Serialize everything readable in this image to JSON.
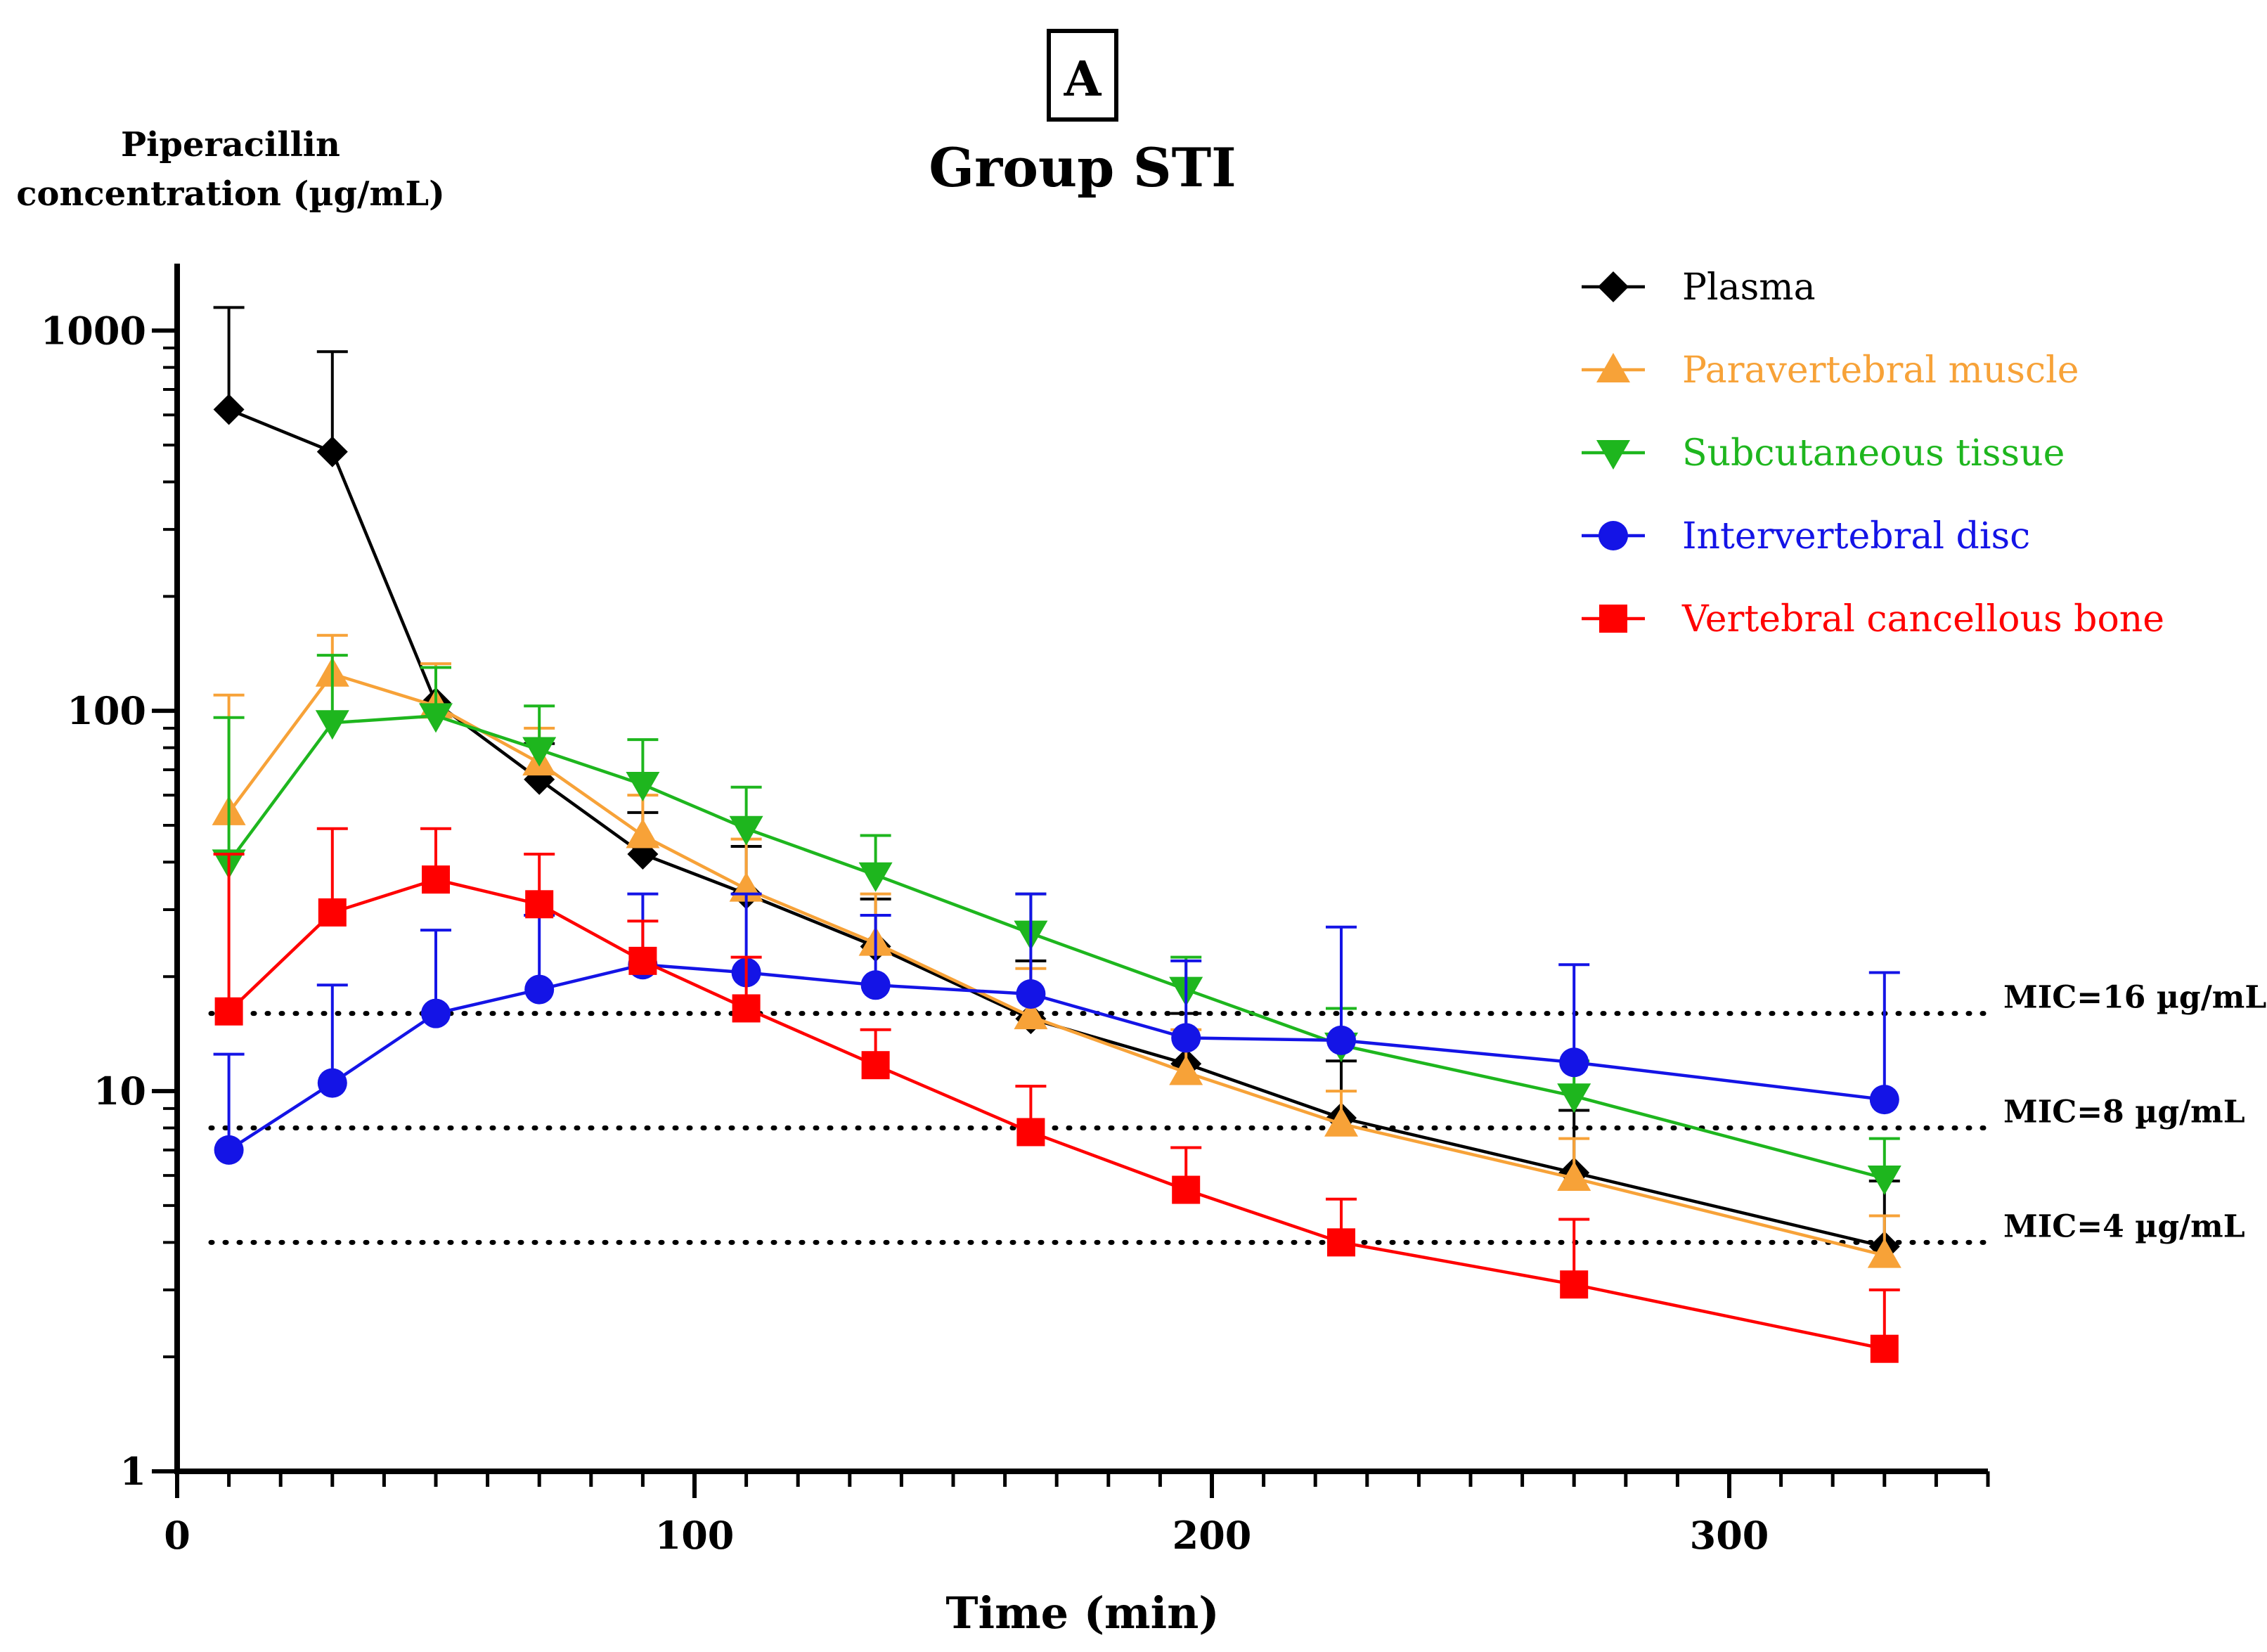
{
  "chart_data": {
    "type": "line",
    "panel_label": "A",
    "title": "Group STI",
    "ylabel_lines": [
      "Piperacillin",
      "concentration (µg/mL)"
    ],
    "xlabel": "Time (min)",
    "x_scale": "linear",
    "y_scale": "log",
    "xlim": [
      0,
      350
    ],
    "ylim": [
      1,
      1500
    ],
    "x_ticks": [
      0,
      100,
      200,
      300
    ],
    "x_tick_labels": [
      "0",
      "100",
      "200",
      "300"
    ],
    "x_minor_step": 10,
    "y_ticks": [
      1,
      10,
      100,
      1000
    ],
    "y_tick_labels": [
      "1",
      "10",
      "100",
      "1000"
    ],
    "grid": false,
    "legend_position": "top-right",
    "series": [
      {
        "name": "Plasma",
        "color": "#000000",
        "marker": "diamond",
        "x": [
          10,
          30,
          50,
          70,
          90,
          110,
          135,
          165,
          195,
          225,
          270,
          330
        ],
        "values": [
          620,
          480,
          105,
          66,
          42,
          33,
          24,
          15.5,
          11.8,
          8.5,
          6.1,
          3.9
        ],
        "error_upper": [
          1150,
          880,
          130,
          82,
          54,
          44,
          32,
          22,
          16,
          12,
          8.9,
          5.8
        ]
      },
      {
        "name": "Paravertebral muscle",
        "color": "#F7A238",
        "marker": "triangle-up",
        "x": [
          10,
          30,
          50,
          70,
          90,
          110,
          135,
          165,
          195,
          225,
          270,
          330
        ],
        "values": [
          54,
          125,
          103,
          73,
          47,
          34,
          24.5,
          15.7,
          11.2,
          8.2,
          5.9,
          3.7
        ],
        "error_upper": [
          110,
          158,
          133,
          90,
          60,
          46,
          33,
          21,
          14.5,
          10,
          7.5,
          4.7
        ]
      },
      {
        "name": "Subcutaneous tissue",
        "color": "#1EB61E",
        "marker": "triangle-down",
        "x": [
          10,
          30,
          50,
          70,
          90,
          110,
          135,
          165,
          195,
          225,
          270,
          330
        ],
        "values": [
          40,
          93,
          97,
          79,
          64,
          49,
          37,
          26,
          18.5,
          13.2,
          9.7,
          5.9
        ],
        "error_upper": [
          96,
          140,
          130,
          103,
          84,
          63,
          47,
          33,
          22.5,
          16.5,
          12,
          7.5
        ]
      },
      {
        "name": "Intervertebral disc",
        "color": "#1414E6",
        "marker": "circle",
        "x": [
          10,
          30,
          50,
          70,
          90,
          110,
          135,
          165,
          195,
          225,
          270,
          330
        ],
        "values": [
          7,
          10.5,
          16,
          18.5,
          21.5,
          20.5,
          19,
          18,
          13.8,
          13.6,
          11.9,
          9.5
        ],
        "error_upper": [
          12.5,
          19,
          26.5,
          29,
          33,
          33,
          29,
          33,
          22,
          27,
          21.5,
          20.5
        ]
      },
      {
        "name": "Vertebral cancellous bone",
        "color": "#FF0000",
        "marker": "square",
        "x": [
          10,
          30,
          50,
          70,
          90,
          110,
          135,
          165,
          195,
          225,
          270,
          330
        ],
        "values": [
          16.2,
          29.5,
          36,
          31,
          22,
          16.5,
          11.7,
          7.8,
          5.5,
          4,
          3.1,
          2.1
        ],
        "error_upper": [
          42,
          49,
          49,
          42,
          28,
          22.5,
          14.5,
          10.3,
          7.1,
          5.2,
          4.6,
          3
        ]
      }
    ],
    "reference_lines": [
      {
        "value": 16,
        "label": "MIC=16 µg/mL",
        "style": "dotted"
      },
      {
        "value": 8,
        "label": "MIC=8 µg/mL",
        "style": "dotted"
      },
      {
        "value": 4,
        "label": "MIC=4 µg/mL",
        "style": "dotted"
      }
    ]
  }
}
